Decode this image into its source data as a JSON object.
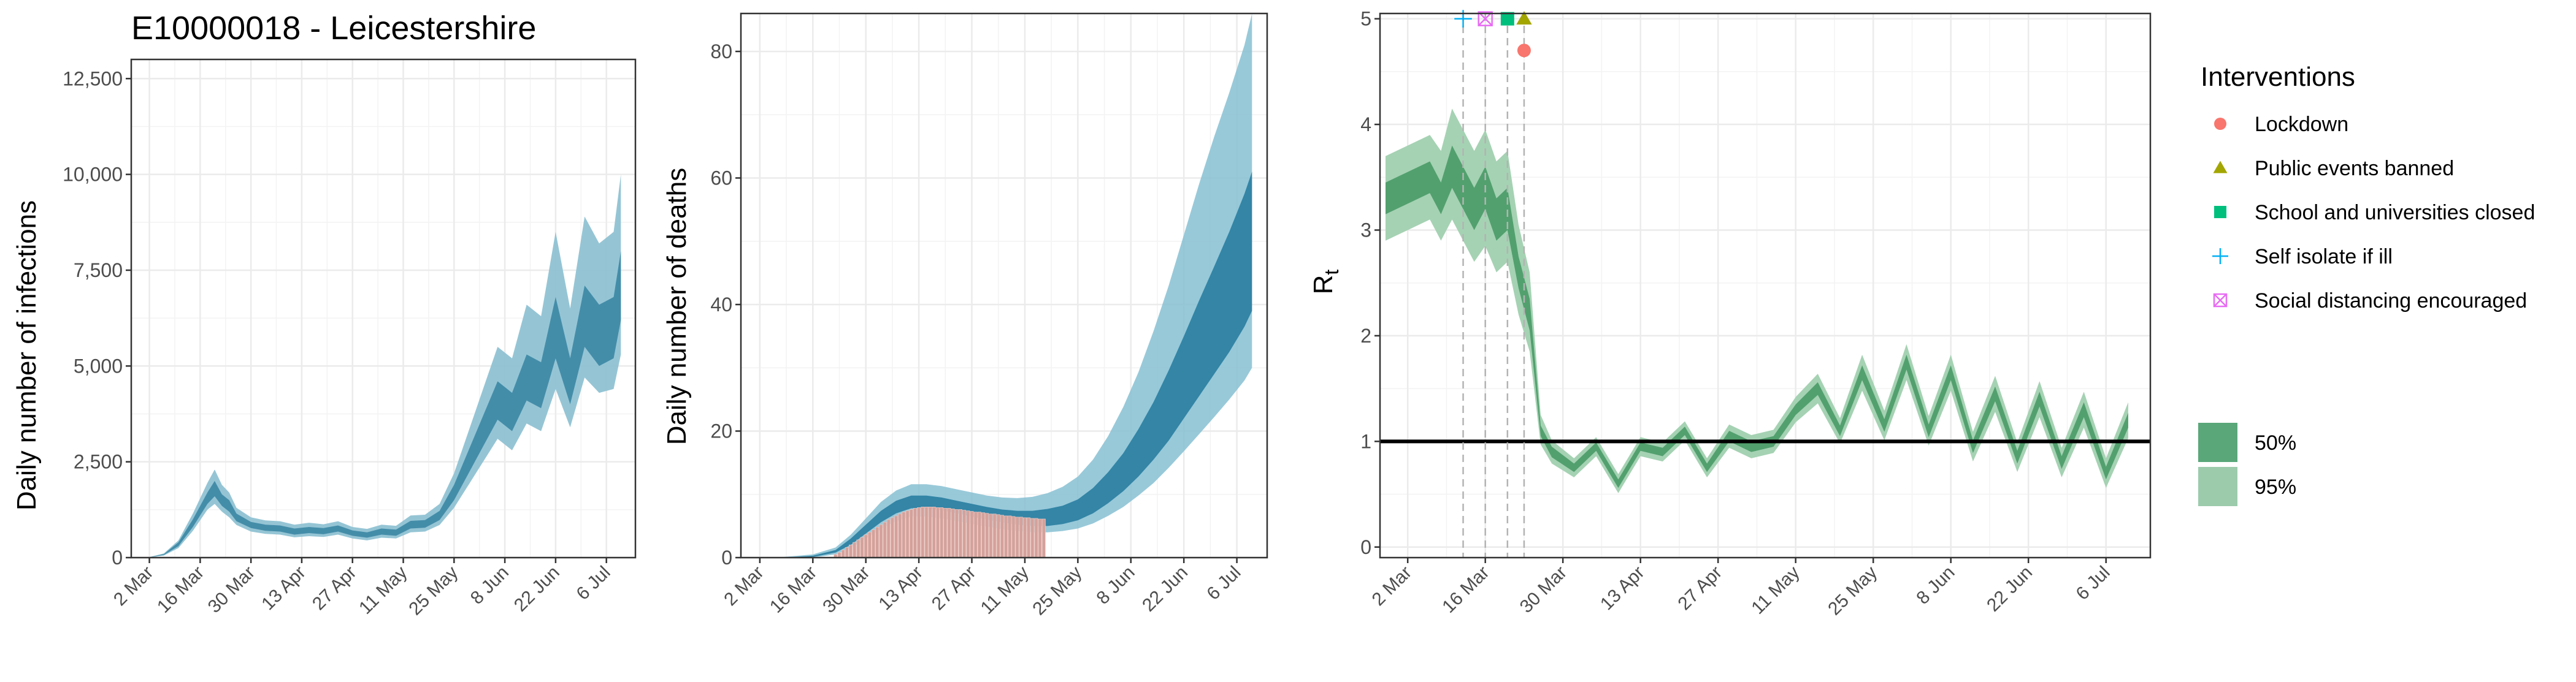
{
  "chart_data": [
    {
      "type": "area",
      "title": "E10000018 - Leicestershire",
      "ylabel": "Daily number of infections",
      "ylim": [
        0,
        13000
      ],
      "yticks": [
        0,
        2500,
        5000,
        7500,
        10000,
        12500
      ],
      "ytick_labels": [
        "0",
        "2,500",
        "5,000",
        "7,500",
        "10,000",
        "12,500"
      ],
      "xlim": [
        -5,
        134
      ],
      "x_ticks": [
        0,
        14,
        28,
        42,
        56,
        70,
        84,
        98,
        112,
        126
      ],
      "x_tick_labels": [
        "2 Mar",
        "16 Mar",
        "30 Mar",
        "13 Apr",
        "27 Apr",
        "11 May",
        "25 May",
        "8 Jun",
        "22 Jun",
        "6 Jul"
      ],
      "x": [
        "27 Feb",
        "2 Mar",
        "6 Mar",
        "10 Mar",
        "14 Mar",
        "18 Mar",
        "20 Mar",
        "22 Mar",
        "24 Mar",
        "26 Mar",
        "30 Mar",
        "3 Apr",
        "7 Apr",
        "11 Apr",
        "15 Apr",
        "19 Apr",
        "23 Apr",
        "27 Apr",
        "1 May",
        "5 May",
        "9 May",
        "13 May",
        "17 May",
        "21 May",
        "25 May",
        "29 May",
        "2 Jun",
        "6 Jun",
        "10 Jun",
        "14 Jun",
        "18 Jun",
        "22 Jun",
        "26 Jun",
        "30 Jun",
        "4 Jul",
        "8 Jul",
        "10 Jul"
      ],
      "series": [
        {
          "values": [
            0,
            10,
            80,
            350,
            900,
            1550,
            1800,
            1500,
            1350,
            1050,
            850,
            780,
            760,
            680,
            720,
            690,
            760,
            640,
            590,
            680,
            650,
            860,
            880,
            1100,
            1700,
            2500,
            3300,
            4100,
            3800,
            4700,
            4500,
            6000,
            4600,
            6300,
            5800,
            6000,
            7100
          ],
          "lower_50": [
            0,
            8,
            70,
            300,
            800,
            1400,
            1600,
            1350,
            1200,
            950,
            770,
            700,
            680,
            600,
            640,
            610,
            680,
            570,
            520,
            600,
            570,
            760,
            780,
            980,
            1500,
            2200,
            2900,
            3600,
            3300,
            4100,
            3900,
            5200,
            4000,
            5500,
            5000,
            5200,
            6200
          ],
          "upper_50": [
            0,
            12,
            90,
            400,
            1000,
            1700,
            2000,
            1650,
            1500,
            1150,
            930,
            860,
            840,
            760,
            800,
            770,
            840,
            710,
            660,
            760,
            730,
            960,
            980,
            1220,
            1900,
            2800,
            3700,
            4600,
            4300,
            5300,
            5100,
            6800,
            5200,
            7100,
            6600,
            6800,
            8000
          ],
          "lower_95": [
            0,
            5,
            55,
            250,
            700,
            1250,
            1400,
            1200,
            1050,
            850,
            680,
            620,
            600,
            530,
            560,
            540,
            600,
            500,
            450,
            520,
            500,
            660,
            680,
            850,
            1300,
            1900,
            2500,
            3100,
            2800,
            3500,
            3300,
            4400,
            3400,
            4700,
            4300,
            4400,
            5300
          ],
          "upper_95": [
            0,
            15,
            110,
            450,
            1150,
            1950,
            2300,
            1900,
            1700,
            1300,
            1050,
            970,
            950,
            860,
            910,
            870,
            950,
            800,
            750,
            860,
            830,
            1100,
            1120,
            1400,
            2200,
            3300,
            4400,
            5500,
            5200,
            6600,
            6300,
            8500,
            6500,
            8900,
            8200,
            8500,
            10000
          ]
        }
      ]
    },
    {
      "type": "area",
      "title": "",
      "ylabel": "Daily number of deaths",
      "ylim": [
        0,
        86
      ],
      "yticks": [
        0,
        20,
        40,
        60,
        80
      ],
      "ytick_labels": [
        "0",
        "20",
        "40",
        "60",
        "80"
      ],
      "xlim": [
        -5,
        134
      ],
      "x_ticks": [
        0,
        14,
        28,
        42,
        56,
        70,
        84,
        98,
        112,
        126
      ],
      "x_tick_labels": [
        "2 Mar",
        "16 Mar",
        "30 Mar",
        "13 Apr",
        "27 Apr",
        "11 May",
        "25 May",
        "8 Jun",
        "22 Jun",
        "6 Jul"
      ],
      "x": [
        "27 Feb",
        "8 Mar",
        "16 Mar",
        "22 Mar",
        "26 Mar",
        "30 Mar",
        "3 Apr",
        "7 Apr",
        "11 Apr",
        "15 Apr",
        "19 Apr",
        "23 Apr",
        "27 Apr",
        "1 May",
        "5 May",
        "9 May",
        "13 May",
        "17 May",
        "21 May",
        "25 May",
        "29 May",
        "2 Jun",
        "6 Jun",
        "10 Jun",
        "14 Jun",
        "18 Jun",
        "22 Jun",
        "26 Jun",
        "30 Jun",
        "4 Jul",
        "8 Jul",
        "10 Jul"
      ],
      "series": [
        {
          "values": [
            0,
            0,
            0.2,
            1,
            2.5,
            4.5,
            6.5,
            8,
            8.8,
            8.8,
            8.5,
            8,
            7.5,
            7,
            6.6,
            6.3,
            6.2,
            6.3,
            6.7,
            7.5,
            9,
            11,
            13.5,
            16.5,
            20,
            24,
            28.5,
            33,
            37.5,
            42,
            47,
            50
          ],
          "lower_50": [
            0,
            0,
            0.1,
            0.8,
            2,
            3.8,
            5.6,
            7,
            7.8,
            7.8,
            7.5,
            7,
            6.5,
            6,
            5.6,
            5.2,
            5,
            5,
            5.3,
            5.9,
            7,
            8.6,
            10.5,
            12.8,
            15.5,
            18.5,
            22,
            25.5,
            29,
            32.5,
            36.5,
            39
          ],
          "upper_50": [
            0,
            0,
            0.3,
            1.2,
            3,
            5.2,
            7.4,
            9,
            9.8,
            9.8,
            9.5,
            9,
            8.5,
            8,
            7.6,
            7.4,
            7.4,
            7.7,
            8.2,
            9.2,
            11,
            13.5,
            16.5,
            20.3,
            24.6,
            29.6,
            35,
            40.6,
            46,
            51.5,
            57.5,
            61
          ],
          "lower_95": [
            0,
            0,
            0,
            0.5,
            1.5,
            3,
            4.5,
            5.8,
            6.5,
            6.5,
            6.2,
            5.8,
            5.3,
            4.9,
            4.5,
            4.2,
            4,
            4,
            4.2,
            4.6,
            5.4,
            6.6,
            8,
            9.8,
            11.8,
            14.2,
            16.8,
            19.5,
            22.2,
            25,
            28,
            30
          ],
          "upper_95": [
            0,
            0.1,
            0.5,
            1.6,
            3.6,
            6.2,
            8.8,
            10.6,
            11.6,
            11.6,
            11.3,
            10.8,
            10.3,
            9.8,
            9.5,
            9.4,
            9.6,
            10.2,
            11.2,
            12.8,
            15.5,
            19.2,
            23.8,
            29.3,
            35.8,
            43,
            51,
            59,
            66.5,
            73.5,
            81,
            86
          ]
        }
      ],
      "observed": {
        "x": [
          "22 Mar",
          "23 Mar",
          "24 Mar",
          "25 Mar",
          "26 Mar",
          "27 Mar",
          "28 Mar",
          "29 Mar",
          "30 Mar",
          "31 Mar",
          "1 Apr",
          "2 Apr",
          "3 Apr",
          "4 Apr",
          "5 Apr",
          "6 Apr",
          "7 Apr",
          "8 Apr",
          "9 Apr",
          "10 Apr",
          "11 Apr",
          "12 Apr",
          "13 Apr",
          "14 Apr",
          "15 Apr",
          "16 Apr",
          "17 Apr",
          "18 Apr",
          "19 Apr",
          "20 Apr",
          "21 Apr",
          "22 Apr",
          "23 Apr",
          "24 Apr",
          "25 Apr",
          "26 Apr",
          "27 Apr",
          "28 Apr",
          "29 Apr",
          "30 Apr",
          "1 May",
          "2 May",
          "3 May",
          "4 May",
          "5 May",
          "6 May",
          "7 May",
          "8 May",
          "9 May",
          "10 May",
          "11 May",
          "12 May",
          "13 May",
          "14 May",
          "15 May",
          "16 May"
        ],
        "values": [
          0.5,
          0.8,
          1.2,
          1.6,
          2,
          2.4,
          2.8,
          3.2,
          3.6,
          4,
          4.4,
          4.8,
          5.2,
          5.6,
          6,
          6.3,
          6.6,
          6.9,
          7.2,
          7.4,
          7.6,
          7.8,
          7.9,
          8,
          8,
          8,
          8,
          7.9,
          7.9,
          7.8,
          7.8,
          7.7,
          7.6,
          7.6,
          7.5,
          7.4,
          7.3,
          7.2,
          7.2,
          7.1,
          7,
          6.9,
          6.9,
          6.8,
          6.7,
          6.6,
          6.6,
          6.5,
          6.4,
          6.4,
          6.3,
          6.3,
          6.2,
          6.2,
          6.1,
          6.1
        ]
      }
    },
    {
      "type": "area",
      "title": "",
      "ylabel": "R",
      "ylabel_sub": "t",
      "ylim": [
        -0.1,
        5.05
      ],
      "yticks": [
        0,
        1,
        2,
        3,
        4,
        5
      ],
      "ytick_labels": [
        "0",
        "1",
        "2",
        "3",
        "4",
        "5"
      ],
      "xlim": [
        -5,
        134
      ],
      "x_ticks": [
        0,
        14,
        28,
        42,
        56,
        70,
        84,
        98,
        112,
        126
      ],
      "x_tick_labels": [
        "2 Mar",
        "16 Mar",
        "30 Mar",
        "13 Apr",
        "27 Apr",
        "11 May",
        "25 May",
        "8 Jun",
        "22 Jun",
        "6 Jul"
      ],
      "reference_line": 1,
      "x": [
        "27 Feb",
        "2 Mar",
        "6 Mar",
        "8 Mar",
        "10 Mar",
        "12 Mar",
        "14 Mar",
        "16 Mar",
        "18 Mar",
        "20 Mar",
        "22 Mar",
        "24 Mar",
        "26 Mar",
        "28 Mar",
        "1 Apr",
        "5 Apr",
        "9 Apr",
        "13 Apr",
        "17 Apr",
        "21 Apr",
        "25 Apr",
        "29 Apr",
        "3 May",
        "7 May",
        "11 May",
        "15 May",
        "19 May",
        "23 May",
        "27 May",
        "31 May",
        "4 Jun",
        "8 Jun",
        "12 Jun",
        "16 Jun",
        "20 Jun",
        "24 Jun",
        "28 Jun",
        "2 Jul",
        "6 Jul",
        "10 Jul"
      ],
      "series": [
        {
          "name": "Rt",
          "values": [
            3.3,
            3.4,
            3.5,
            3.3,
            3.6,
            3.4,
            3.2,
            3.4,
            3.1,
            3.2,
            2.6,
            2.2,
            1.1,
            0.9,
            0.75,
            0.95,
            0.6,
            0.95,
            0.9,
            1.1,
            0.75,
            1.05,
            0.95,
            1.0,
            1.3,
            1.5,
            1.1,
            1.65,
            1.15,
            1.75,
            1.1,
            1.65,
            0.95,
            1.45,
            0.85,
            1.4,
            0.8,
            1.3,
            0.7,
            1.2
          ],
          "lower_50": [
            3.15,
            3.25,
            3.35,
            3.15,
            3.4,
            3.2,
            3.0,
            3.2,
            2.9,
            3.0,
            2.45,
            2.05,
            1.05,
            0.85,
            0.71,
            0.91,
            0.56,
            0.91,
            0.86,
            1.06,
            0.71,
            1.0,
            0.9,
            0.95,
            1.25,
            1.44,
            1.05,
            1.58,
            1.09,
            1.68,
            1.04,
            1.58,
            0.89,
            1.38,
            0.79,
            1.33,
            0.74,
            1.23,
            0.64,
            1.13
          ],
          "upper_50": [
            3.45,
            3.55,
            3.65,
            3.45,
            3.8,
            3.6,
            3.4,
            3.6,
            3.3,
            3.4,
            2.75,
            2.35,
            1.15,
            0.95,
            0.79,
            0.99,
            0.64,
            0.99,
            0.94,
            1.14,
            0.79,
            1.1,
            1.0,
            1.05,
            1.35,
            1.56,
            1.15,
            1.72,
            1.21,
            1.82,
            1.16,
            1.72,
            1.01,
            1.52,
            0.91,
            1.47,
            0.86,
            1.37,
            0.76,
            1.27
          ],
          "lower_95": [
            2.9,
            3.0,
            3.1,
            2.9,
            3.1,
            2.9,
            2.7,
            2.85,
            2.6,
            2.7,
            2.2,
            1.85,
            0.97,
            0.79,
            0.66,
            0.86,
            0.51,
            0.86,
            0.81,
            1.01,
            0.66,
            0.94,
            0.84,
            0.89,
            1.18,
            1.36,
            0.98,
            1.48,
            1.01,
            1.58,
            0.96,
            1.48,
            0.81,
            1.28,
            0.71,
            1.23,
            0.66,
            1.13,
            0.56,
            1.03
          ],
          "upper_95": [
            3.7,
            3.8,
            3.9,
            3.75,
            4.15,
            3.95,
            3.75,
            3.95,
            3.65,
            3.75,
            3.05,
            2.6,
            1.25,
            1.01,
            0.84,
            1.04,
            0.69,
            1.04,
            0.99,
            1.19,
            0.84,
            1.16,
            1.06,
            1.11,
            1.42,
            1.64,
            1.22,
            1.82,
            1.29,
            1.92,
            1.24,
            1.82,
            1.09,
            1.62,
            0.99,
            1.57,
            0.94,
            1.47,
            0.84,
            1.37
          ]
        }
      ],
      "interventions": [
        {
          "name": "Lockdown",
          "date": "23 Mar",
          "value": 4.7,
          "color": "#f8766d",
          "marker": "circle"
        },
        {
          "name": "Public events banned",
          "date": "23 Mar",
          "value": 5.0,
          "color": "#a3a500",
          "marker": "triangle"
        },
        {
          "name": "School and universities closed",
          "date": "20 Mar",
          "value": 5.0,
          "color": "#00bf7d",
          "marker": "square"
        },
        {
          "name": "Self isolate if ill",
          "date": "12 Mar",
          "value": 5.0,
          "color": "#00b0f6",
          "marker": "plus"
        },
        {
          "name": "Social distancing encouraged",
          "date": "16 Mar",
          "value": 5.0,
          "color": "#e76bf3",
          "marker": "boxed-x"
        }
      ],
      "legend": {
        "title": "Interventions",
        "placement": "right",
        "bands": [
          {
            "label": "50%",
            "color": "#5aa77a"
          },
          {
            "label": "95%",
            "color": "#9ccbac"
          }
        ]
      }
    }
  ],
  "colors": {
    "infections_95": "#8fc2d3",
    "infections_50": "#3f8aa6",
    "deaths_95": "#86bfd2",
    "deaths_50": "#2e82a3",
    "observed_bars": "#d4a19a",
    "rt_95": "#a5d2b3",
    "rt_50": "#4d9d6a",
    "grid": "#ebebeb",
    "panel_border": "#333333"
  }
}
